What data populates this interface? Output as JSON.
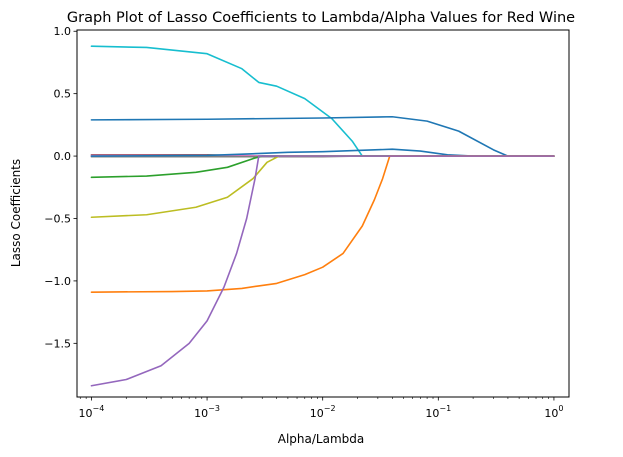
{
  "chart_data": {
    "type": "line",
    "title": "Graph Plot of Lasso Coefficients to Lambda/Alpha Values for Red Wine",
    "xlabel": "Alpha/Lambda",
    "ylabel": "Lasso Coefficients",
    "xscale": "log",
    "xlim": [
      7.5e-05,
      1.35
    ],
    "ylim": [
      -1.93,
      1.01
    ],
    "grid": false,
    "legend": "none",
    "xticks": [
      {
        "value": 0.0001,
        "base": "10",
        "exp": "−4"
      },
      {
        "value": 0.001,
        "base": "10",
        "exp": "−3"
      },
      {
        "value": 0.01,
        "base": "10",
        "exp": "−2"
      },
      {
        "value": 0.1,
        "base": "10",
        "exp": "−1"
      },
      {
        "value": 1,
        "base": "10",
        "exp": "0"
      }
    ],
    "yticks": [
      {
        "value": 1.0,
        "label": "1.0"
      },
      {
        "value": 0.5,
        "label": "0.5"
      },
      {
        "value": 0.0,
        "label": "0.0"
      },
      {
        "value": -0.5,
        "label": "−0.5"
      },
      {
        "value": -1.0,
        "label": "−1.0"
      },
      {
        "value": -1.5,
        "label": "−1.5"
      }
    ],
    "series": [
      {
        "color": "#17becf",
        "points": [
          [
            0.0001,
            0.88
          ],
          [
            0.0003,
            0.87
          ],
          [
            0.001,
            0.82
          ],
          [
            0.002,
            0.7
          ],
          [
            0.0028,
            0.59
          ],
          [
            0.004,
            0.56
          ],
          [
            0.007,
            0.46
          ],
          [
            0.012,
            0.3
          ],
          [
            0.018,
            0.12
          ],
          [
            0.022,
            0.0
          ],
          [
            1.0,
            0.0
          ]
        ]
      },
      {
        "color": "#1f77b4",
        "points": [
          [
            0.0001,
            0.29
          ],
          [
            0.001,
            0.295
          ],
          [
            0.01,
            0.305
          ],
          [
            0.04,
            0.315
          ],
          [
            0.08,
            0.28
          ],
          [
            0.15,
            0.2
          ],
          [
            0.3,
            0.05
          ],
          [
            0.4,
            0.0
          ],
          [
            1.0,
            0.0
          ]
        ]
      },
      {
        "color": "#8c564b",
        "points": [
          [
            0.0001,
            0.01
          ],
          [
            0.001,
            0.01
          ],
          [
            0.0028,
            0.0
          ],
          [
            1.0,
            0.0
          ]
        ]
      },
      {
        "color": "#e377c2",
        "points": [
          [
            0.0001,
            0.005
          ],
          [
            0.002,
            0.005
          ],
          [
            0.003,
            0.0
          ],
          [
            1.0,
            0.0
          ]
        ]
      },
      {
        "color": "#7f7f7f",
        "points": [
          [
            0.0001,
            -0.005
          ],
          [
            0.01,
            -0.005
          ],
          [
            0.02,
            0.0
          ],
          [
            1.0,
            0.0
          ]
        ]
      },
      {
        "color": "#1f77b4",
        "points": [
          [
            0.0001,
            0.0
          ],
          [
            0.001,
            0.005
          ],
          [
            0.002,
            0.015
          ],
          [
            0.005,
            0.03
          ],
          [
            0.01,
            0.035
          ],
          [
            0.02,
            0.045
          ],
          [
            0.04,
            0.055
          ],
          [
            0.07,
            0.04
          ],
          [
            0.12,
            0.01
          ],
          [
            0.2,
            0.0
          ],
          [
            1.0,
            0.0
          ]
        ]
      },
      {
        "color": "#2ca02c",
        "points": [
          [
            0.0001,
            -0.17
          ],
          [
            0.0003,
            -0.16
          ],
          [
            0.0008,
            -0.13
          ],
          [
            0.0015,
            -0.09
          ],
          [
            0.0025,
            -0.02
          ],
          [
            0.003,
            0.0
          ],
          [
            1.0,
            0.0
          ]
        ]
      },
      {
        "color": "#bcbd22",
        "points": [
          [
            0.0001,
            -0.49
          ],
          [
            0.0003,
            -0.47
          ],
          [
            0.0008,
            -0.41
          ],
          [
            0.0015,
            -0.33
          ],
          [
            0.0025,
            -0.18
          ],
          [
            0.0033,
            -0.05
          ],
          [
            0.0042,
            0.0
          ],
          [
            1.0,
            0.0
          ]
        ]
      },
      {
        "color": "#ff7f0e",
        "points": [
          [
            0.0001,
            -1.09
          ],
          [
            0.0005,
            -1.085
          ],
          [
            0.001,
            -1.08
          ],
          [
            0.002,
            -1.06
          ],
          [
            0.0028,
            -1.04
          ],
          [
            0.004,
            -1.02
          ],
          [
            0.007,
            -0.95
          ],
          [
            0.01,
            -0.89
          ],
          [
            0.015,
            -0.78
          ],
          [
            0.022,
            -0.56
          ],
          [
            0.028,
            -0.35
          ],
          [
            0.033,
            -0.18
          ],
          [
            0.038,
            0.0
          ],
          [
            1.0,
            0.0
          ]
        ]
      },
      {
        "color": "#9467bd",
        "points": [
          [
            0.0001,
            -1.84
          ],
          [
            0.0002,
            -1.79
          ],
          [
            0.0004,
            -1.68
          ],
          [
            0.0007,
            -1.5
          ],
          [
            0.001,
            -1.32
          ],
          [
            0.0014,
            -1.05
          ],
          [
            0.0018,
            -0.78
          ],
          [
            0.0022,
            -0.5
          ],
          [
            0.0026,
            -0.18
          ],
          [
            0.0028,
            0.0
          ],
          [
            1.0,
            0.0
          ]
        ]
      }
    ]
  }
}
